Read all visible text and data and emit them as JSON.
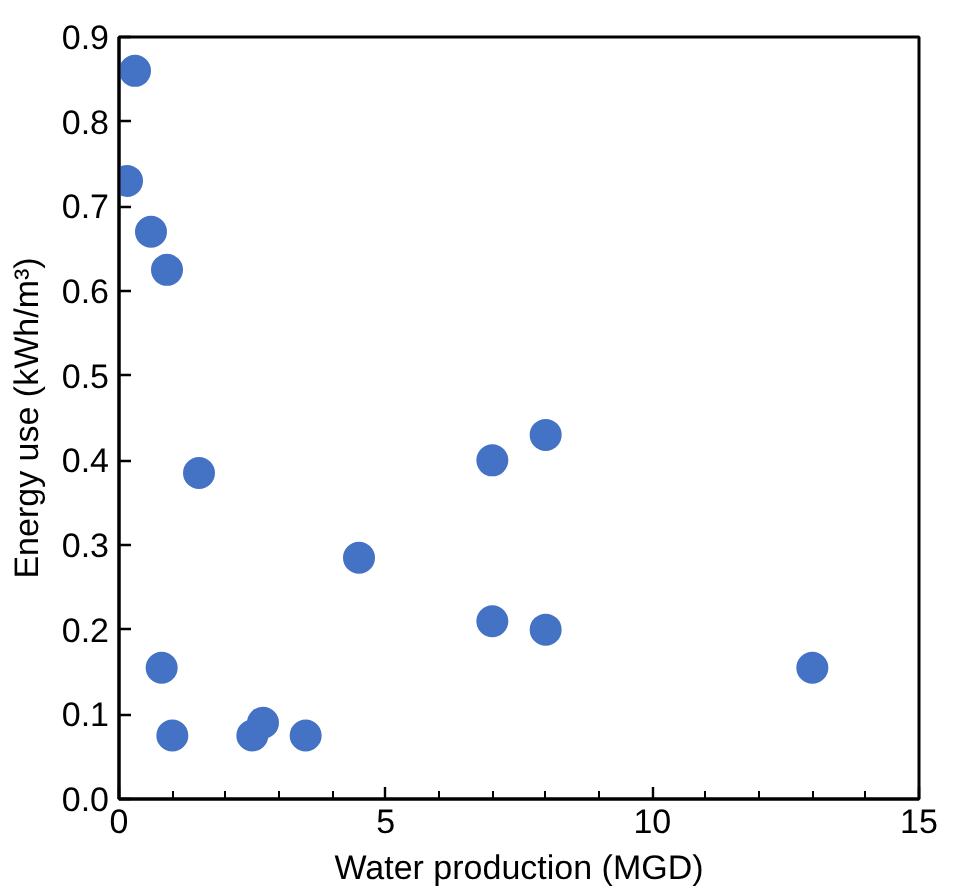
{
  "chart_data": {
    "type": "scatter",
    "xlabel": "Water production (MGD)",
    "ylabel": "Energy use (kWh/m³)",
    "x": [
      0.3,
      0.15,
      0.6,
      0.9,
      1.5,
      7,
      8,
      4.5,
      7,
      8,
      13,
      0.8,
      1,
      2.5,
      2.7,
      3.5
    ],
    "series": [
      {
        "color": "#4472c4",
        "values": [
          0.86,
          0.73,
          0.67,
          0.625,
          0.385,
          0.4,
          0.43,
          0.285,
          0.21,
          0.2,
          0.155,
          0.155,
          0.075,
          0.075,
          0.09,
          0.075
        ]
      }
    ],
    "xlim": [
      0,
      15
    ],
    "xticks": [
      0,
      5,
      10,
      15
    ],
    "ylim": [
      0,
      0.9
    ],
    "yticks": [
      {
        "value": 0,
        "label": "0.0"
      },
      0.1,
      0.2,
      0.3,
      0.4,
      0.5,
      0.6,
      0.7,
      0.8,
      0.9
    ],
    "grid": false,
    "marker": "circle"
  }
}
